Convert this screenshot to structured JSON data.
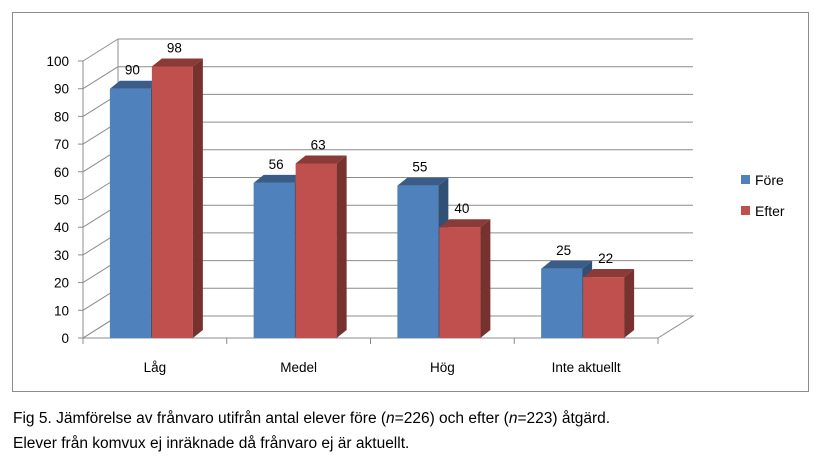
{
  "chart_data": {
    "type": "bar",
    "categories": [
      "Låg",
      "Medel",
      "Hög",
      "Inte aktuellt"
    ],
    "series": [
      {
        "name": "Före",
        "values": [
          90,
          56,
          55,
          25
        ],
        "color": "#4f81bd"
      },
      {
        "name": "Efter",
        "values": [
          98,
          63,
          40,
          22
        ],
        "color": "#c0504d"
      }
    ],
    "ylim": [
      0,
      100
    ],
    "yticks": [
      0,
      10,
      20,
      30,
      40,
      50,
      60,
      70,
      80,
      90,
      100
    ],
    "grid": true,
    "three_d": true,
    "legend": "right",
    "data_labels": true
  },
  "caption": {
    "line1_prefix": "Fig 5. Jämförelse av frånvaro utifrån antal elever före (",
    "n_symbol_1": "n",
    "line1_mid": "=226) och efter (",
    "n_symbol_2": "n",
    "line1_suffix": "=223) åtgärd.",
    "line2": "Elever från komvux ej inräknade då frånvaro ej är aktuellt."
  }
}
